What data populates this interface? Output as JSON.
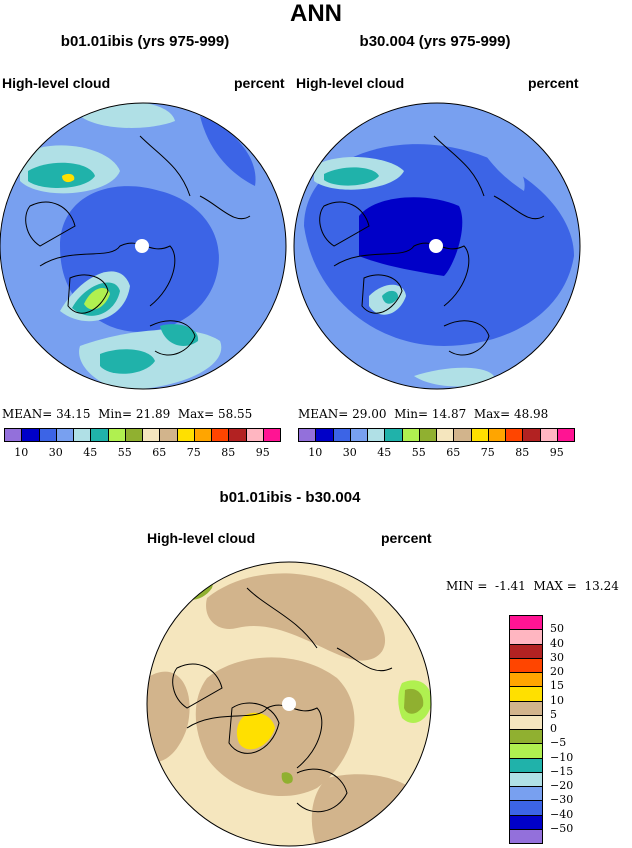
{
  "title": "ANN",
  "panels": [
    {
      "title": "b01.01ibis (yrs 975-999)",
      "variable": "High-level cloud",
      "units": "percent",
      "stats": {
        "mean_label": "MEAN=",
        "mean": "34.15",
        "min_label": "Min=",
        "min": "21.89",
        "max_label": "Max=",
        "max": "58.55"
      }
    },
    {
      "title": "b30.004 (yrs 975-999)",
      "variable": "High-level cloud",
      "units": "percent",
      "stats": {
        "mean_label": "MEAN=",
        "mean": "29.00",
        "min_label": "Min=",
        "min": "14.87",
        "max_label": "Max=",
        "max": "48.98"
      }
    }
  ],
  "colorbar": {
    "colors": [
      "#9370db",
      "#0000c8",
      "#3c64e6",
      "#78a0f0",
      "#b0e0e6",
      "#20b2aa",
      "#b0f050",
      "#90b030",
      "#f5e6be",
      "#d2b48c",
      "#ffe000",
      "#ffa500",
      "#ff4500",
      "#b22222",
      "#ffb6c1",
      "#ff1493"
    ],
    "labels": [
      "10",
      "30",
      "45",
      "55",
      "65",
      "75",
      "85",
      "95"
    ]
  },
  "diff": {
    "title": "b01.01ibis - b30.004",
    "variable": "High-level cloud",
    "units": "percent",
    "min_label": "MIN =",
    "min": "-1.41",
    "max_label": "MAX =",
    "max": "13.24",
    "colors": [
      "#ff1493",
      "#ffb6c1",
      "#b22222",
      "#ff4500",
      "#ffa500",
      "#ffe000",
      "#d2b48c",
      "#f5e6be",
      "#90b030",
      "#b0f050",
      "#20b2aa",
      "#b0e0e6",
      "#78a0f0",
      "#3c64e6",
      "#0000c8",
      "#9370db"
    ],
    "labels": [
      "50",
      "40",
      "30",
      "20",
      "15",
      "10",
      "5",
      "0",
      "−5",
      "−10",
      "−15",
      "−20",
      "−30",
      "−40",
      "−50"
    ]
  }
}
